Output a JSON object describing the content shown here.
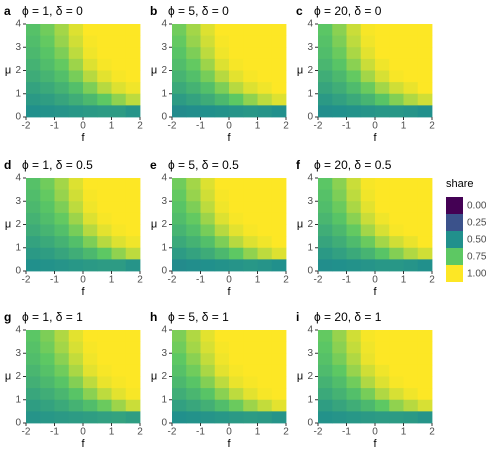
{
  "chart_data": [
    {
      "type": "heatmap",
      "tag": "a",
      "title": "ϕ = 1, δ = 0",
      "xlabel": "f",
      "ylabel": "μ",
      "xlim": [
        -2,
        2
      ],
      "ylim": [
        0,
        4
      ],
      "xticks": [
        -2,
        -1,
        0,
        1,
        2
      ],
      "yticks": [
        0,
        1,
        2,
        3,
        4
      ],
      "x": [
        -1.75,
        -1.25,
        -0.75,
        -0.25,
        0.25,
        0.75,
        1.25,
        1.75
      ],
      "y": [
        3.75,
        3.25,
        2.75,
        2.25,
        1.75,
        1.25,
        0.75,
        0.25
      ],
      "values": [
        [
          0.72,
          0.78,
          0.86,
          0.95,
          1,
          1,
          1,
          1
        ],
        [
          0.7,
          0.76,
          0.84,
          0.93,
          0.99,
          1,
          1,
          1
        ],
        [
          0.68,
          0.73,
          0.8,
          0.9,
          0.98,
          1,
          1,
          1
        ],
        [
          0.65,
          0.7,
          0.76,
          0.85,
          0.95,
          0.99,
          1,
          1
        ],
        [
          0.62,
          0.66,
          0.71,
          0.79,
          0.89,
          0.96,
          0.99,
          1
        ],
        [
          0.58,
          0.61,
          0.65,
          0.71,
          0.8,
          0.89,
          0.95,
          0.98
        ],
        [
          0.54,
          0.56,
          0.59,
          0.63,
          0.68,
          0.75,
          0.83,
          0.9
        ],
        [
          0.5,
          0.51,
          0.52,
          0.53,
          0.54,
          0.55,
          0.55,
          0.52
        ]
      ]
    },
    {
      "type": "heatmap",
      "tag": "b",
      "title": "ϕ = 5, δ = 0",
      "xlabel": "f",
      "ylabel": "μ",
      "xlim": [
        -2,
        2
      ],
      "ylim": [
        0,
        4
      ],
      "xticks": [
        -2,
        -1,
        0,
        1,
        2
      ],
      "yticks": [
        0,
        1,
        2,
        3,
        4
      ],
      "x": [
        -1.75,
        -1.25,
        -0.75,
        -0.25,
        0.25,
        0.75,
        1.25,
        1.75
      ],
      "y": [
        3.75,
        3.25,
        2.75,
        2.25,
        1.75,
        1.25,
        0.75,
        0.25
      ],
      "values": [
        [
          0.78,
          0.86,
          0.95,
          1,
          1,
          1,
          1,
          1
        ],
        [
          0.76,
          0.84,
          0.93,
          0.99,
          1,
          1,
          1,
          1
        ],
        [
          0.73,
          0.8,
          0.9,
          0.98,
          1,
          1,
          1,
          1
        ],
        [
          0.7,
          0.76,
          0.85,
          0.95,
          0.99,
          1,
          1,
          1
        ],
        [
          0.66,
          0.71,
          0.79,
          0.89,
          0.96,
          0.99,
          1,
          1
        ],
        [
          0.61,
          0.65,
          0.71,
          0.8,
          0.89,
          0.95,
          0.98,
          1
        ],
        [
          0.55,
          0.58,
          0.62,
          0.68,
          0.75,
          0.83,
          0.9,
          0.95
        ],
        [
          0.48,
          0.49,
          0.5,
          0.51,
          0.52,
          0.53,
          0.52,
          0.5
        ]
      ]
    },
    {
      "type": "heatmap",
      "tag": "c",
      "title": "ϕ = 20, δ = 0",
      "xlabel": "f",
      "ylabel": "μ",
      "xlim": [
        -2,
        2
      ],
      "ylim": [
        0,
        4
      ],
      "xticks": [
        -2,
        -1,
        0,
        1,
        2
      ],
      "yticks": [
        0,
        1,
        2,
        3,
        4
      ],
      "x": [
        -1.75,
        -1.25,
        -0.75,
        -0.25,
        0.25,
        0.75,
        1.25,
        1.75
      ],
      "y": [
        3.75,
        3.25,
        2.75,
        2.25,
        1.75,
        1.25,
        0.75,
        0.25
      ],
      "values": [
        [
          0.74,
          0.82,
          0.92,
          0.99,
          1,
          1,
          1,
          1
        ],
        [
          0.72,
          0.8,
          0.9,
          0.98,
          1,
          1,
          1,
          1
        ],
        [
          0.7,
          0.77,
          0.87,
          0.96,
          1,
          1,
          1,
          1
        ],
        [
          0.67,
          0.73,
          0.82,
          0.92,
          0.98,
          1,
          1,
          1
        ],
        [
          0.63,
          0.68,
          0.76,
          0.86,
          0.94,
          0.99,
          1,
          1
        ],
        [
          0.59,
          0.63,
          0.69,
          0.77,
          0.86,
          0.93,
          0.97,
          1
        ],
        [
          0.54,
          0.57,
          0.61,
          0.66,
          0.73,
          0.81,
          0.88,
          0.93
        ],
        [
          0.49,
          0.5,
          0.51,
          0.52,
          0.53,
          0.53,
          0.52,
          0.5
        ]
      ]
    },
    {
      "type": "heatmap",
      "tag": "d",
      "title": "ϕ = 1, δ = 0.5",
      "xlabel": "f",
      "ylabel": "μ",
      "xlim": [
        -2,
        2
      ],
      "ylim": [
        0,
        4
      ],
      "xticks": [
        -2,
        -1,
        0,
        1,
        2
      ],
      "yticks": [
        0,
        1,
        2,
        3,
        4
      ],
      "x": [
        -1.75,
        -1.25,
        -0.75,
        -0.25,
        0.25,
        0.75,
        1.25,
        1.75
      ],
      "y": [
        3.75,
        3.25,
        2.75,
        2.25,
        1.75,
        1.25,
        0.75,
        0.25
      ],
      "values": [
        [
          0.72,
          0.78,
          0.86,
          0.95,
          1,
          1,
          1,
          1
        ],
        [
          0.7,
          0.76,
          0.84,
          0.93,
          0.99,
          1,
          1,
          1
        ],
        [
          0.68,
          0.73,
          0.8,
          0.9,
          0.98,
          1,
          1,
          1
        ],
        [
          0.65,
          0.7,
          0.76,
          0.85,
          0.95,
          0.99,
          1,
          1
        ],
        [
          0.62,
          0.66,
          0.71,
          0.79,
          0.89,
          0.96,
          0.99,
          1
        ],
        [
          0.58,
          0.61,
          0.65,
          0.71,
          0.8,
          0.89,
          0.95,
          0.98
        ],
        [
          0.54,
          0.56,
          0.59,
          0.63,
          0.68,
          0.75,
          0.83,
          0.9
        ],
        [
          0.5,
          0.51,
          0.52,
          0.53,
          0.54,
          0.55,
          0.55,
          0.52
        ]
      ]
    },
    {
      "type": "heatmap",
      "tag": "e",
      "title": "ϕ = 5, δ = 0.5",
      "xlabel": "f",
      "ylabel": "μ",
      "xlim": [
        -2,
        2
      ],
      "ylim": [
        0,
        4
      ],
      "xticks": [
        -2,
        -1,
        0,
        1,
        2
      ],
      "yticks": [
        0,
        1,
        2,
        3,
        4
      ],
      "x": [
        -1.75,
        -1.25,
        -0.75,
        -0.25,
        0.25,
        0.75,
        1.25,
        1.75
      ],
      "y": [
        3.75,
        3.25,
        2.75,
        2.25,
        1.75,
        1.25,
        0.75,
        0.25
      ],
      "values": [
        [
          0.78,
          0.86,
          0.95,
          1,
          1,
          1,
          1,
          1
        ],
        [
          0.76,
          0.84,
          0.93,
          0.99,
          1,
          1,
          1,
          1
        ],
        [
          0.73,
          0.8,
          0.9,
          0.98,
          1,
          1,
          1,
          1
        ],
        [
          0.7,
          0.76,
          0.85,
          0.95,
          0.99,
          1,
          1,
          1
        ],
        [
          0.66,
          0.71,
          0.79,
          0.89,
          0.96,
          0.99,
          1,
          1
        ],
        [
          0.61,
          0.65,
          0.71,
          0.8,
          0.89,
          0.95,
          0.98,
          1
        ],
        [
          0.55,
          0.58,
          0.62,
          0.68,
          0.75,
          0.83,
          0.9,
          0.95
        ],
        [
          0.48,
          0.49,
          0.5,
          0.51,
          0.52,
          0.53,
          0.52,
          0.5
        ]
      ]
    },
    {
      "type": "heatmap",
      "tag": "f",
      "title": "ϕ = 20, δ = 0.5",
      "xlabel": "f",
      "ylabel": "μ",
      "xlim": [
        -2,
        2
      ],
      "ylim": [
        0,
        4
      ],
      "xticks": [
        -2,
        -1,
        0,
        1,
        2
      ],
      "yticks": [
        0,
        1,
        2,
        3,
        4
      ],
      "x": [
        -1.75,
        -1.25,
        -0.75,
        -0.25,
        0.25,
        0.75,
        1.25,
        1.75
      ],
      "y": [
        3.75,
        3.25,
        2.75,
        2.25,
        1.75,
        1.25,
        0.75,
        0.25
      ],
      "values": [
        [
          0.74,
          0.82,
          0.92,
          0.99,
          1,
          1,
          1,
          1
        ],
        [
          0.72,
          0.8,
          0.9,
          0.98,
          1,
          1,
          1,
          1
        ],
        [
          0.7,
          0.77,
          0.87,
          0.96,
          1,
          1,
          1,
          1
        ],
        [
          0.67,
          0.73,
          0.82,
          0.92,
          0.98,
          1,
          1,
          1
        ],
        [
          0.63,
          0.68,
          0.76,
          0.86,
          0.94,
          0.99,
          1,
          1
        ],
        [
          0.59,
          0.63,
          0.69,
          0.77,
          0.86,
          0.93,
          0.97,
          1
        ],
        [
          0.54,
          0.57,
          0.61,
          0.66,
          0.73,
          0.81,
          0.88,
          0.93
        ],
        [
          0.49,
          0.5,
          0.51,
          0.52,
          0.53,
          0.53,
          0.52,
          0.5
        ]
      ]
    },
    {
      "type": "heatmap",
      "tag": "g",
      "title": "ϕ = 1, δ = 1",
      "xlabel": "f",
      "ylabel": "μ",
      "xlim": [
        -2,
        2
      ],
      "ylim": [
        0,
        4
      ],
      "xticks": [
        -2,
        -1,
        0,
        1,
        2
      ],
      "yticks": [
        0,
        1,
        2,
        3,
        4
      ],
      "x": [
        -1.75,
        -1.25,
        -0.75,
        -0.25,
        0.25,
        0.75,
        1.25,
        1.75
      ],
      "y": [
        3.75,
        3.25,
        2.75,
        2.25,
        1.75,
        1.25,
        0.75,
        0.25
      ],
      "values": [
        [
          0.74,
          0.8,
          0.88,
          0.96,
          1,
          1,
          1,
          1
        ],
        [
          0.72,
          0.78,
          0.86,
          0.94,
          0.99,
          1,
          1,
          1
        ],
        [
          0.7,
          0.75,
          0.82,
          0.91,
          0.98,
          1,
          1,
          1
        ],
        [
          0.67,
          0.72,
          0.78,
          0.87,
          0.96,
          0.99,
          1,
          1
        ],
        [
          0.64,
          0.68,
          0.73,
          0.81,
          0.9,
          0.97,
          0.99,
          1
        ],
        [
          0.6,
          0.63,
          0.67,
          0.73,
          0.82,
          0.9,
          0.96,
          0.99
        ],
        [
          0.56,
          0.58,
          0.61,
          0.65,
          0.7,
          0.77,
          0.85,
          0.92
        ],
        [
          0.52,
          0.53,
          0.54,
          0.55,
          0.56,
          0.57,
          0.58,
          0.56
        ]
      ]
    },
    {
      "type": "heatmap",
      "tag": "h",
      "title": "ϕ = 5, δ = 1",
      "xlabel": "f",
      "ylabel": "μ",
      "xlim": [
        -2,
        2
      ],
      "ylim": [
        0,
        4
      ],
      "xticks": [
        -2,
        -1,
        0,
        1,
        2
      ],
      "yticks": [
        0,
        1,
        2,
        3,
        4
      ],
      "x": [
        -1.75,
        -1.25,
        -0.75,
        -0.25,
        0.25,
        0.75,
        1.25,
        1.75
      ],
      "y": [
        3.75,
        3.25,
        2.75,
        2.25,
        1.75,
        1.25,
        0.75,
        0.25
      ],
      "values": [
        [
          0.8,
          0.88,
          0.96,
          1,
          1,
          1,
          1,
          1
        ],
        [
          0.78,
          0.86,
          0.94,
          0.99,
          1,
          1,
          1,
          1
        ],
        [
          0.75,
          0.82,
          0.91,
          0.98,
          1,
          1,
          1,
          1
        ],
        [
          0.72,
          0.78,
          0.87,
          0.96,
          0.99,
          1,
          1,
          1
        ],
        [
          0.68,
          0.73,
          0.81,
          0.9,
          0.97,
          0.99,
          1,
          1
        ],
        [
          0.63,
          0.67,
          0.73,
          0.82,
          0.9,
          0.96,
          0.99,
          1
        ],
        [
          0.57,
          0.6,
          0.64,
          0.7,
          0.77,
          0.85,
          0.91,
          0.96
        ],
        [
          0.5,
          0.51,
          0.52,
          0.53,
          0.54,
          0.55,
          0.54,
          0.52
        ]
      ]
    },
    {
      "type": "heatmap",
      "tag": "i",
      "title": "ϕ = 20, δ = 1",
      "xlabel": "f",
      "ylabel": "μ",
      "xlim": [
        -2,
        2
      ],
      "ylim": [
        0,
        4
      ],
      "xticks": [
        -2,
        -1,
        0,
        1,
        2
      ],
      "yticks": [
        0,
        1,
        2,
        3,
        4
      ],
      "x": [
        -1.75,
        -1.25,
        -0.75,
        -0.25,
        0.25,
        0.75,
        1.25,
        1.75
      ],
      "y": [
        3.75,
        3.25,
        2.75,
        2.25,
        1.75,
        1.25,
        0.75,
        0.25
      ],
      "values": [
        [
          0.76,
          0.84,
          0.93,
          0.99,
          1,
          1,
          1,
          1
        ],
        [
          0.74,
          0.82,
          0.91,
          0.98,
          1,
          1,
          1,
          1
        ],
        [
          0.72,
          0.79,
          0.88,
          0.97,
          1,
          1,
          1,
          1
        ],
        [
          0.69,
          0.75,
          0.84,
          0.93,
          0.98,
          1,
          1,
          1
        ],
        [
          0.65,
          0.7,
          0.78,
          0.88,
          0.95,
          0.99,
          1,
          1
        ],
        [
          0.61,
          0.65,
          0.71,
          0.79,
          0.88,
          0.94,
          0.98,
          1
        ],
        [
          0.56,
          0.59,
          0.63,
          0.68,
          0.75,
          0.83,
          0.89,
          0.94
        ],
        [
          0.51,
          0.52,
          0.53,
          0.54,
          0.55,
          0.55,
          0.54,
          0.52
        ]
      ]
    }
  ],
  "legend": {
    "title": "share",
    "ticks": [
      {
        "value": 0,
        "label": "0.00"
      },
      {
        "value": 0.25,
        "label": "0.25"
      },
      {
        "value": 0.5,
        "label": "0.50"
      },
      {
        "value": 0.75,
        "label": "0.75"
      },
      {
        "value": 1,
        "label": "1.00"
      }
    ],
    "colors": [
      "#440154",
      "#3b528b",
      "#21908c",
      "#5dc863",
      "#fde725"
    ]
  }
}
